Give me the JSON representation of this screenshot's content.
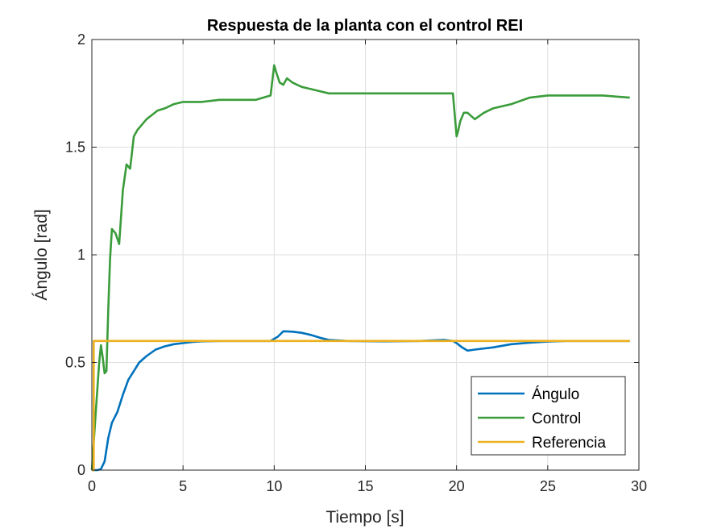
{
  "chart_data": {
    "type": "line",
    "title": "Respuesta de la planta con el control REI",
    "xlabel": "Tiempo [s]",
    "ylabel": "Ángulo [rad]",
    "xlim": [
      0,
      30
    ],
    "ylim": [
      0,
      2
    ],
    "xticks": [
      0,
      5,
      10,
      15,
      20,
      25,
      30
    ],
    "xtick_labels": [
      "0",
      "5",
      "10",
      "15",
      "20",
      "25",
      "30"
    ],
    "yticks": [
      0,
      0.5,
      1,
      1.5,
      2
    ],
    "ytick_labels": [
      "0",
      "0.5",
      "1",
      "1.5",
      "2"
    ],
    "grid": true,
    "legend_position": "bottom-right",
    "series": [
      {
        "name": "Ángulo",
        "color": "#0072BD",
        "x": [
          0,
          0.3,
          0.5,
          0.7,
          0.9,
          1.1,
          1.4,
          1.7,
          2.0,
          2.3,
          2.6,
          3.0,
          3.5,
          4.0,
          4.5,
          5.0,
          5.5,
          6.0,
          7.0,
          8.0,
          9.0,
          9.8,
          10.2,
          10.5,
          11.0,
          11.5,
          12.0,
          12.5,
          13.0,
          14.0,
          16.0,
          18.0,
          19.3,
          19.8,
          20.0,
          20.3,
          20.6,
          21.0,
          22.0,
          23.0,
          24.0,
          25.0,
          26.0,
          27.0,
          28.0,
          29.5
        ],
        "y": [
          0,
          0.0,
          0.005,
          0.04,
          0.15,
          0.22,
          0.27,
          0.35,
          0.42,
          0.46,
          0.5,
          0.53,
          0.56,
          0.575,
          0.585,
          0.59,
          0.595,
          0.598,
          0.6,
          0.6,
          0.6,
          0.6,
          0.62,
          0.645,
          0.643,
          0.638,
          0.628,
          0.615,
          0.605,
          0.6,
          0.598,
          0.6,
          0.605,
          0.6,
          0.59,
          0.57,
          0.555,
          0.56,
          0.57,
          0.585,
          0.592,
          0.597,
          0.6,
          0.6,
          0.6,
          0.6
        ]
      },
      {
        "name": "Control",
        "color": "#3A9C3A",
        "x": [
          0,
          0.2,
          0.4,
          0.5,
          0.6,
          0.7,
          0.8,
          0.9,
          1.0,
          1.1,
          1.3,
          1.5,
          1.7,
          1.9,
          2.1,
          2.3,
          2.5,
          2.7,
          3.0,
          3.3,
          3.6,
          4.0,
          4.5,
          5.0,
          6.0,
          7.0,
          8.0,
          9.0,
          9.8,
          10.0,
          10.1,
          10.3,
          10.5,
          10.7,
          11.0,
          11.5,
          12.0,
          12.5,
          13.0,
          14.0,
          16.0,
          18.0,
          19.8,
          20.0,
          20.1,
          20.2,
          20.4,
          20.6,
          21.0,
          21.5,
          22.0,
          23.0,
          24.0,
          25.0,
          26.0,
          27.0,
          28.0,
          29.5
        ],
        "y": [
          0,
          0.25,
          0.5,
          0.58,
          0.52,
          0.45,
          0.46,
          0.75,
          0.98,
          1.12,
          1.1,
          1.05,
          1.3,
          1.42,
          1.4,
          1.55,
          1.58,
          1.6,
          1.63,
          1.65,
          1.67,
          1.68,
          1.7,
          1.71,
          1.71,
          1.72,
          1.72,
          1.72,
          1.74,
          1.88,
          1.85,
          1.8,
          1.79,
          1.82,
          1.8,
          1.78,
          1.77,
          1.76,
          1.75,
          1.75,
          1.75,
          1.75,
          1.75,
          1.55,
          1.58,
          1.62,
          1.66,
          1.66,
          1.63,
          1.66,
          1.68,
          1.7,
          1.73,
          1.74,
          1.74,
          1.74,
          1.74,
          1.73
        ]
      },
      {
        "name": "Referencia",
        "color": "#EDB120",
        "x": [
          0,
          0.1,
          0.1,
          29.5
        ],
        "y": [
          0,
          0,
          0.6,
          0.6
        ]
      }
    ]
  }
}
